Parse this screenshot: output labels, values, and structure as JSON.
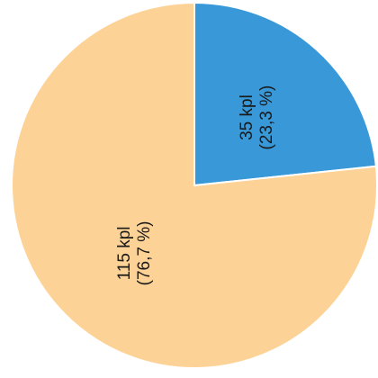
{
  "chart_data": {
    "type": "pie",
    "title": "",
    "slices": [
      {
        "label": "35 kpl",
        "percent_label": "(23,3 %)",
        "value": 35,
        "percent": 23.3,
        "color": "#3898d8"
      },
      {
        "label": "115 kpl",
        "percent_label": "(76,7 %)",
        "value": 115,
        "percent": 76.7,
        "color": "#fdd296"
      }
    ],
    "start": "12 o'clock",
    "direction": "clockwise",
    "labels_rotated": "vertical, reading bottom-to-top"
  }
}
